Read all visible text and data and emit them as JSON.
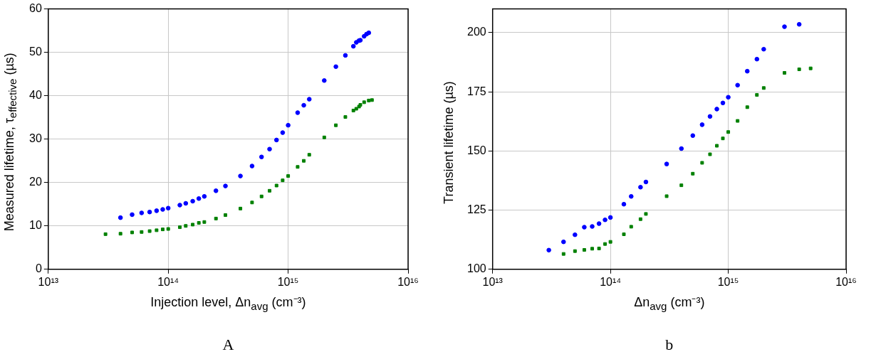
{
  "chart_data": [
    {
      "type": "scatter",
      "xlabel": "Injection level, Δn$_{avg}$ (cm⁻³)",
      "ylabel": "Measured lifetime, τ$_{effective}$ (µs)",
      "annotations": [
        "A"
      ],
      "log": "x",
      "grid": true,
      "xlim": [
        10000000000000.0,
        1e+16
      ],
      "xticks": [
        {
          "value": 10000000000000.0,
          "label": "10¹³"
        },
        {
          "value": 100000000000000.0,
          "label": "10¹⁴"
        },
        {
          "value": 1000000000000000.0,
          "label": "10¹⁵"
        },
        {
          "value": 1e+16,
          "label": "10¹⁶"
        }
      ],
      "ylim": [
        0,
        60
      ],
      "yticks": [
        0,
        10,
        20,
        30,
        40,
        50,
        60
      ],
      "series": [
        {
          "color": "#0000ff",
          "marker": "circle",
          "x": [
            40000000000000.0,
            50000000000000.0,
            60000000000000.0,
            70000000000000.0,
            80000000000000.0,
            90000000000000.0,
            100000000000000.0,
            125000000000000.0,
            140000000000000.0,
            160000000000000.0,
            180000000000000.0,
            200000000000000.0,
            250000000000000.0,
            300000000000000.0,
            400000000000000.0,
            500000000000000.0,
            600000000000000.0,
            700000000000000.0,
            800000000000000.0,
            900000000000000.0,
            1000000000000000.0,
            1200000000000000.0,
            1350000000000000.0,
            1500000000000000.0,
            2000000000000000.0,
            2500000000000000.0,
            3000000000000000.0,
            3500000000000000.0,
            3700000000000000.0,
            3900000000000000.0,
            4000000000000000.0,
            4300000000000000.0,
            4500000000000000.0,
            4700000000000000.0
          ],
          "values": [
            11.9,
            12.6,
            13.0,
            13.2,
            13.5,
            13.8,
            14.1,
            14.8,
            15.2,
            15.7,
            16.3,
            16.8,
            18.1,
            19.2,
            21.5,
            23.8,
            25.9,
            27.7,
            29.8,
            31.5,
            33.2,
            36.1,
            37.8,
            39.2,
            43.5,
            46.7,
            49.3,
            51.4,
            52.3,
            52.7,
            52.8,
            53.7,
            54.2,
            54.5
          ]
        },
        {
          "color": "#008000",
          "marker": "square",
          "x": [
            30000000000000.0,
            40000000000000.0,
            50000000000000.0,
            60000000000000.0,
            70000000000000.0,
            80000000000000.0,
            90000000000000.0,
            100000000000000.0,
            125000000000000.0,
            140000000000000.0,
            160000000000000.0,
            180000000000000.0,
            200000000000000.0,
            250000000000000.0,
            300000000000000.0,
            400000000000000.0,
            500000000000000.0,
            600000000000000.0,
            700000000000000.0,
            800000000000000.0,
            900000000000000.0,
            1000000000000000.0,
            1200000000000000.0,
            1350000000000000.0,
            1500000000000000.0,
            2000000000000000.0,
            2500000000000000.0,
            3000000000000000.0,
            3500000000000000.0,
            3700000000000000.0,
            3900000000000000.0,
            4000000000000000.0,
            4300000000000000.0,
            4700000000000000.0,
            5000000000000000.0
          ],
          "values": [
            8.1,
            8.2,
            8.5,
            8.6,
            8.8,
            9.0,
            9.2,
            9.3,
            9.7,
            10.0,
            10.3,
            10.7,
            10.9,
            11.7,
            12.5,
            14.0,
            15.4,
            16.8,
            18.1,
            19.3,
            20.5,
            21.5,
            23.6,
            25.0,
            26.4,
            30.4,
            33.2,
            35.1,
            36.6,
            37.0,
            37.5,
            37.9,
            38.5,
            38.9,
            39.0
          ]
        }
      ]
    },
    {
      "type": "scatter",
      "xlabel": "Δn$_{avg}$ (cm⁻³)",
      "ylabel": "Transient lifetime (µs)",
      "annotations": [
        "b"
      ],
      "log": "x",
      "grid": true,
      "xlim": [
        10000000000000.0,
        1e+16
      ],
      "xticks": [
        {
          "value": 10000000000000.0,
          "label": "10¹³"
        },
        {
          "value": 100000000000000.0,
          "label": "10¹⁴"
        },
        {
          "value": 1000000000000000.0,
          "label": "10¹⁵"
        },
        {
          "value": 1e+16,
          "label": "10¹⁶"
        }
      ],
      "ylim": [
        100,
        210
      ],
      "yticks": [
        100,
        125,
        150,
        175,
        200
      ],
      "series": [
        {
          "color": "#0000ff",
          "marker": "circle",
          "x": [
            30000000000000.0,
            40000000000000.0,
            50000000000000.0,
            60000000000000.0,
            70000000000000.0,
            80000000000000.0,
            90000000000000.0,
            100000000000000.0,
            130000000000000.0,
            150000000000000.0,
            180000000000000.0,
            200000000000000.0,
            300000000000000.0,
            400000000000000.0,
            500000000000000.0,
            600000000000000.0,
            700000000000000.0,
            800000000000000.0,
            900000000000000.0,
            1000000000000000.0,
            1200000000000000.0,
            1450000000000000.0,
            1750000000000000.0,
            2000000000000000.0,
            3000000000000000.0,
            4000000000000000.0
          ],
          "values": [
            108.1,
            111.6,
            114.6,
            117.8,
            118.1,
            119.3,
            120.9,
            121.9,
            127.5,
            130.8,
            134.7,
            136.9,
            144.5,
            151.0,
            156.5,
            161.1,
            164.6,
            167.7,
            170.3,
            172.7,
            177.8,
            183.7,
            188.8,
            193.0,
            202.5,
            203.5
          ]
        },
        {
          "color": "#008000",
          "marker": "square",
          "x": [
            40000000000000.0,
            50000000000000.0,
            60000000000000.0,
            70000000000000.0,
            80000000000000.0,
            90000000000000.0,
            100000000000000.0,
            130000000000000.0,
            150000000000000.0,
            180000000000000.0,
            200000000000000.0,
            300000000000000.0,
            400000000000000.0,
            500000000000000.0,
            600000000000000.0,
            700000000000000.0,
            800000000000000.0,
            900000000000000.0,
            1000000000000000.0,
            1200000000000000.0,
            1450000000000000.0,
            1750000000000000.0,
            2000000000000000.0,
            3000000000000000.0,
            4000000000000000.0,
            5000000000000000.0
          ],
          "values": [
            106.5,
            107.7,
            108.2,
            108.7,
            108.8,
            110.7,
            111.6,
            114.8,
            118.0,
            121.2,
            123.4,
            130.9,
            135.5,
            140.4,
            145.0,
            148.6,
            152.2,
            155.3,
            158.0,
            162.7,
            168.5,
            173.7,
            176.6,
            183.0,
            184.5,
            184.9
          ]
        }
      ]
    }
  ]
}
